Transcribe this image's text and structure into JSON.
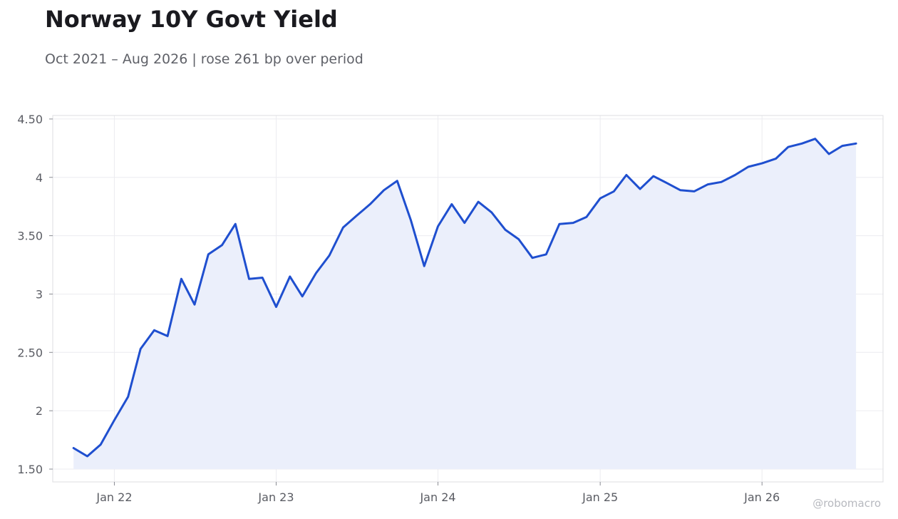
{
  "title": "Norway 10Y Govt Yield",
  "subtitle": "Oct 2021 – Aug 2026 | rose 261 bp over period",
  "watermark": "@robomacro",
  "colors": {
    "line": "#1f4fcf",
    "area": "#ebeffb",
    "grid": "#ececf0",
    "frame": "#dcdde2"
  },
  "chart_data": {
    "type": "line",
    "title": "Norway 10Y Govt Yield",
    "xlabel": "",
    "ylabel": "",
    "x_axis": "date",
    "x_tick_labels": [
      "Jan 22",
      "Jan 23",
      "Jan 24",
      "Jan 25",
      "Jan 26"
    ],
    "x_tick_dates": [
      "2022-01",
      "2023-01",
      "2024-01",
      "2025-01",
      "2026-01"
    ],
    "y_tick_labels": [
      "1.50",
      "2",
      "2.50",
      "3",
      "3.50",
      "4",
      "4.50"
    ],
    "y_tick_values": [
      1.5,
      2,
      2.5,
      3,
      3.5,
      4,
      4.5
    ],
    "ylim": [
      1.39,
      4.53
    ],
    "xlim": [
      "2021-08-15",
      "2026-10-01"
    ],
    "grid": true,
    "legend": "none",
    "fill_under_line": true,
    "series": [
      {
        "x": [
          "2021-10",
          "2021-11",
          "2021-12",
          "2022-01",
          "2022-02",
          "2022-03",
          "2022-04",
          "2022-05",
          "2022-06",
          "2022-07",
          "2022-08",
          "2022-09",
          "2022-10",
          "2022-11",
          "2022-12",
          "2023-01",
          "2023-02",
          "2023-03",
          "2023-04",
          "2023-05",
          "2023-06",
          "2023-07",
          "2023-08",
          "2023-09",
          "2023-10",
          "2023-11",
          "2023-12",
          "2024-01",
          "2024-02",
          "2024-03",
          "2024-04",
          "2024-05",
          "2024-06",
          "2024-07",
          "2024-08",
          "2024-09",
          "2024-10",
          "2024-11",
          "2024-12",
          "2025-01",
          "2025-02",
          "2025-03",
          "2025-04",
          "2025-05",
          "2025-06",
          "2025-07",
          "2025-08",
          "2025-09",
          "2025-10",
          "2025-11",
          "2025-12",
          "2026-01",
          "2026-02",
          "2026-03",
          "2026-04",
          "2026-05",
          "2026-06",
          "2026-07",
          "2026-08"
        ],
        "values": [
          1.68,
          1.61,
          1.71,
          1.92,
          2.12,
          2.53,
          2.69,
          2.64,
          3.13,
          2.91,
          3.34,
          3.42,
          3.6,
          3.13,
          3.14,
          2.89,
          3.15,
          2.98,
          3.18,
          3.33,
          3.57,
          3.67,
          3.77,
          3.89,
          3.97,
          3.63,
          3.24,
          3.58,
          3.77,
          3.61,
          3.79,
          3.7,
          3.55,
          3.47,
          3.31,
          3.34,
          3.6,
          3.61,
          3.66,
          3.82,
          3.88,
          4.02,
          3.9,
          4.01,
          3.95,
          3.89,
          3.88,
          3.94,
          3.96,
          4.02,
          4.09,
          4.12,
          4.16,
          4.26,
          4.29,
          4.33,
          4.2,
          4.27,
          4.29
        ]
      }
    ]
  }
}
